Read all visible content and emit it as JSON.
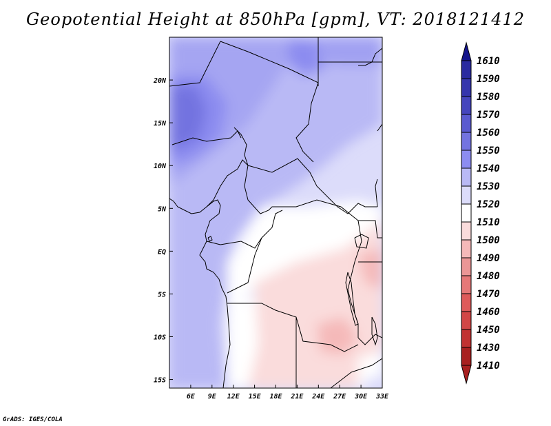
{
  "title": "Geopotential Height at 850hPa [gpm], VT: 2018121412",
  "credit": "GrADS: IGES/COLA",
  "map": {
    "lon_range": [
      3,
      33
    ],
    "lat_range": [
      -16,
      25
    ],
    "x_ticks": [
      {
        "lon": 6,
        "label": "6E"
      },
      {
        "lon": 9,
        "label": "9E"
      },
      {
        "lon": 12,
        "label": "12E"
      },
      {
        "lon": 15,
        "label": "15E"
      },
      {
        "lon": 18,
        "label": "18E"
      },
      {
        "lon": 21,
        "label": "21E"
      },
      {
        "lon": 24,
        "label": "24E"
      },
      {
        "lon": 27,
        "label": "27E"
      },
      {
        "lon": 30,
        "label": "30E"
      },
      {
        "lon": 33,
        "label": "33E"
      }
    ],
    "y_ticks": [
      {
        "lat": 20,
        "label": "20N"
      },
      {
        "lat": 15,
        "label": "15N"
      },
      {
        "lat": 10,
        "label": "10N"
      },
      {
        "lat": 5,
        "label": "5N"
      },
      {
        "lat": 0,
        "label": "EQ"
      },
      {
        "lat": -5,
        "label": "5S"
      },
      {
        "lat": -10,
        "label": "10S"
      },
      {
        "lat": -15,
        "label": "15S"
      }
    ]
  },
  "colorbar": {
    "levels": [
      {
        "label": "1610",
        "color": "#1e1e96"
      },
      {
        "label": "1590",
        "color": "#2a2aa0"
      },
      {
        "label": "1580",
        "color": "#3535ad"
      },
      {
        "label": "1570",
        "color": "#4545bd"
      },
      {
        "label": "1560",
        "color": "#5a5ad0"
      },
      {
        "label": "1550",
        "color": "#7373e0"
      },
      {
        "label": "1540",
        "color": "#8c8cf0"
      },
      {
        "label": "1530",
        "color": "#b9b9f5"
      },
      {
        "label": "1520",
        "color": "#dcdcfa"
      },
      {
        "label": "1510",
        "color": "#ffffff"
      },
      {
        "label": "1500",
        "color": "#fadcdc"
      },
      {
        "label": "1490",
        "color": "#f5b9b9"
      },
      {
        "label": "1480",
        "color": "#eb9696"
      },
      {
        "label": "1470",
        "color": "#e67878"
      },
      {
        "label": "1460",
        "color": "#de5a5a"
      },
      {
        "label": "1450",
        "color": "#d24646"
      },
      {
        "label": "1430",
        "color": "#c13232"
      },
      {
        "label": "1410",
        "color": "#a82020"
      }
    ],
    "top_color": "#14148c",
    "bottom_color": "#a82020"
  }
}
